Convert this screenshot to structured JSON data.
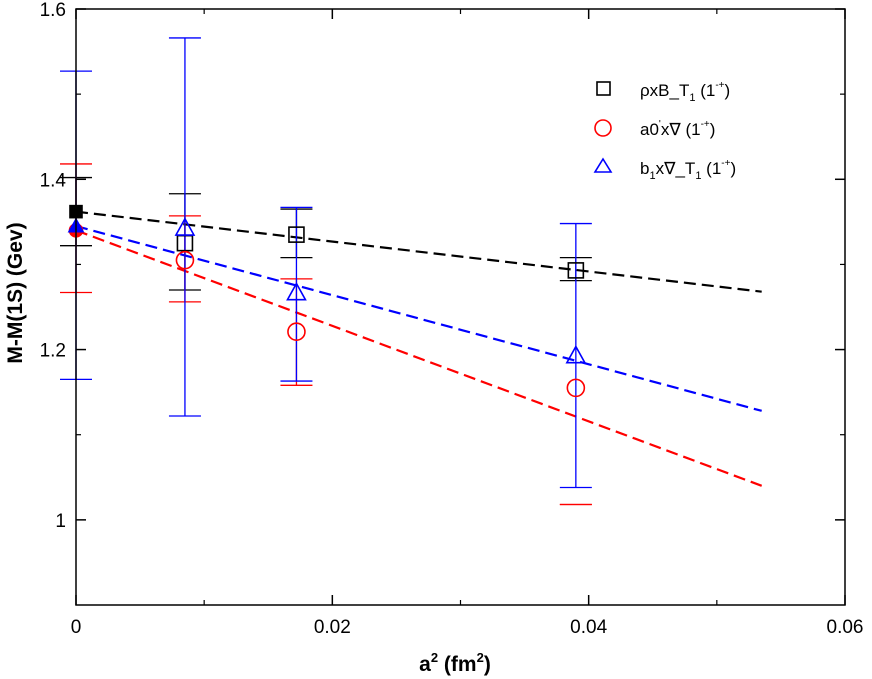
{
  "chart_data": {
    "type": "scatter",
    "xlabel": "a",
    "xlabel_sup": "2",
    "xlabel_unit_open": " (fm",
    "xlabel_unit_sup": "2",
    "xlabel_unit_close": ")",
    "ylabel": "M-M(1S)  (Gev)",
    "xlim": [
      0,
      0.06
    ],
    "ylim": [
      0.9,
      1.6
    ],
    "x_ticks": [
      {
        "value": 0,
        "label": "0"
      },
      {
        "value": 0.02,
        "label": "0.02"
      },
      {
        "value": 0.04,
        "label": "0.04"
      },
      {
        "value": 0.06,
        "label": "0.06"
      }
    ],
    "y_ticks": [
      {
        "value": 1.0,
        "label": "1"
      },
      {
        "value": 1.2,
        "label": "1.2"
      },
      {
        "value": 1.4,
        "label": "1.4"
      },
      {
        "value": 1.6,
        "label": "1.6"
      }
    ],
    "x_minor": [
      0.01,
      0.03,
      0.05
    ],
    "y_minor": [
      1.1,
      1.3,
      1.5
    ],
    "grid": false,
    "legend_position": "top-right",
    "series": [
      {
        "name": "rho-x-B-T1",
        "legend": {
          "base": "ρxB_T",
          "sub": "1",
          "mid": " (1",
          "sup": "-+",
          "end": ")"
        },
        "color": "#000000",
        "marker": "square",
        "points": [
          {
            "x": 0.0085,
            "y": 1.325,
            "lo": 1.27,
            "hi": 1.383
          },
          {
            "x": 0.0172,
            "y": 1.335,
            "lo": 1.308,
            "hi": 1.365
          },
          {
            "x": 0.039,
            "y": 1.293,
            "lo": 1.281,
            "hi": 1.308
          }
        ],
        "extrapolated": {
          "x": 0,
          "y": 1.362,
          "lo": 1.322,
          "hi": 1.402
        },
        "fit": {
          "x0": 0,
          "y0": 1.362,
          "x1": 0.0535,
          "y1": 1.268
        }
      },
      {
        "name": "a0-x-nabla",
        "legend": {
          "base": "a0",
          "sup_prime": "'",
          "rest": "x∇  (1",
          "sup": "-+",
          "end": ")"
        },
        "color": "#ff0000",
        "marker": "circle",
        "points": [
          {
            "x": 0.0085,
            "y": 1.305,
            "lo": 1.256,
            "hi": 1.357
          },
          {
            "x": 0.0172,
            "y": 1.221,
            "lo": 1.158,
            "hi": 1.283
          },
          {
            "x": 0.039,
            "y": 1.155,
            "lo": 1.018,
            "hi": 1.018
          }
        ],
        "extrapolated": {
          "x": 0,
          "y": 1.34,
          "lo": 1.267,
          "hi": 1.418
        },
        "fit": {
          "x0": 0,
          "y0": 1.34,
          "x1": 0.0535,
          "y1": 1.04
        }
      },
      {
        "name": "b1-x-nabla-T1",
        "legend": {
          "base": "b",
          "sub1": "1",
          "rest": "x∇_T",
          "sub2": "1",
          "mid": " (1",
          "sup": "-+",
          "end": ")"
        },
        "color": "#0000ff",
        "marker": "triangle",
        "points": [
          {
            "x": 0.0085,
            "y": 1.343,
            "lo": 1.122,
            "hi": 1.566
          },
          {
            "x": 0.0172,
            "y": 1.267,
            "lo": 1.163,
            "hi": 1.367
          },
          {
            "x": 0.039,
            "y": 1.193,
            "lo": 1.038,
            "hi": 1.348
          }
        ],
        "extrapolated": {
          "x": 0,
          "y": 1.345,
          "lo": 1.165,
          "hi": 1.527
        },
        "fit": {
          "x0": 0,
          "y0": 1.345,
          "x1": 0.0535,
          "y1": 1.128
        }
      }
    ]
  }
}
